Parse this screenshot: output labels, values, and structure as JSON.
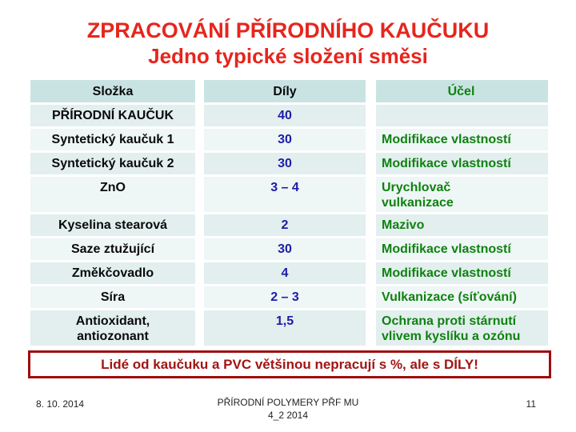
{
  "slide": {
    "title_line1": "ZPRACOVÁNÍ PŘÍRODNÍHO KAUČUKU",
    "title_line2": "Jedno typické složení směsi"
  },
  "table": {
    "headers": [
      "Složka",
      "Díly",
      "Účel"
    ],
    "rows": [
      {
        "slozka": "PŘÍRODNÍ KAUČUK",
        "dily": "40",
        "ucel": ""
      },
      {
        "slozka": "Syntetický kaučuk 1",
        "dily": "30",
        "ucel": "Modifikace vlastností"
      },
      {
        "slozka": "Syntetický kaučuk 2",
        "dily": "30",
        "ucel": "Modifikace vlastností"
      },
      {
        "slozka": "ZnO",
        "dily": "3 – 4",
        "ucel": "Urychlovač\nvulkanizace"
      },
      {
        "slozka": "Kyselina stearová",
        "dily": "2",
        "ucel": "Mazivo"
      },
      {
        "slozka": "Saze ztužující",
        "dily": "30",
        "ucel": "Modifikace vlastností"
      },
      {
        "slozka": "Změkčovadlo",
        "dily": "4",
        "ucel": "Modifikace vlastností"
      },
      {
        "slozka": "Síra",
        "dily": "2 – 3",
        "ucel": "Vulkanizace (síťování)"
      },
      {
        "slozka": "Antioxidant,\nantiozonant",
        "dily": "1,5",
        "ucel": "Ochrana proti stárnutí\nvlivem kyslíku a ozónu"
      }
    ]
  },
  "callout": {
    "text": "Lidé od kaučuku a PVC většinou nepracují s %, ale s DÍLY!"
  },
  "footer": {
    "date": "8. 10. 2014",
    "center_line1": "PŘÍRODNÍ POLYMERY PŘF MU",
    "center_line2": "4_2 2014",
    "page_number": "11"
  },
  "colors": {
    "title": "#e5261e",
    "callout_text": "#a31414",
    "callout_border": "#9e0e0e",
    "value_blue": "#1c1ca6",
    "purpose_green": "#0f820f",
    "header_bg": "#c9e3e3",
    "row_bg_a": "#e3efef",
    "row_bg_b": "#eef6f6",
    "text_black": "#0a0a0a",
    "footer_text": "#222222"
  }
}
